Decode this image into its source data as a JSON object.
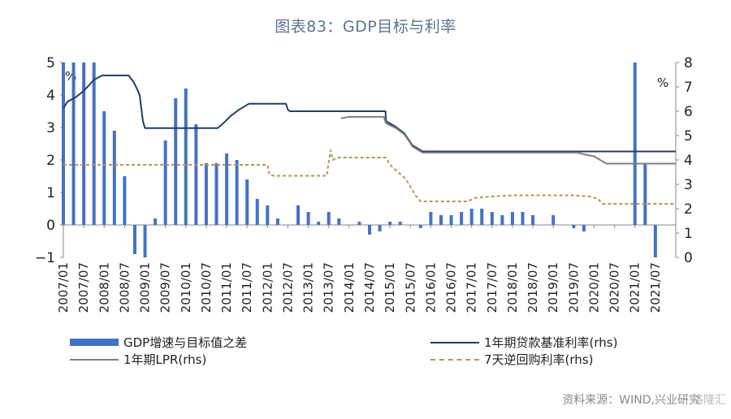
{
  "chart_data": {
    "type": "bar+line",
    "title": "图表83：GDP目标与利率",
    "left_unit": "%",
    "right_unit": "%",
    "ylim_left": [
      -1,
      5
    ],
    "ylim_right": [
      0,
      8
    ],
    "yticks_left": [
      "5",
      "4",
      "3",
      "2",
      "1",
      "0",
      "−1"
    ],
    "yticks_right": [
      "8",
      "7",
      "6",
      "5",
      "4",
      "3",
      "2",
      "1",
      "0"
    ],
    "x_range": [
      2007.0,
      2022.0
    ],
    "xticks": [
      "2007/01",
      "2007/07",
      "2008/01",
      "2008/07",
      "2009/01",
      "2009/07",
      "2010/01",
      "2010/07",
      "2011/01",
      "2011/07",
      "2012/01",
      "2012/07",
      "2013/01",
      "2013/07",
      "2014/01",
      "2014/07",
      "2015/01",
      "2015/07",
      "2016/01",
      "2016/07",
      "2017/01",
      "2017/07",
      "2018/01",
      "2018/07",
      "2019/01",
      "2019/07",
      "2020/01",
      "2020/07",
      "2021/01",
      "2021/07"
    ],
    "series": [
      {
        "name": "GDP增速与目标值之差",
        "type": "bar",
        "axis": "left",
        "color": "#4472c4",
        "points": [
          [
            2007.0,
            5.0
          ],
          [
            2007.25,
            5.0
          ],
          [
            2007.5,
            5.0
          ],
          [
            2007.75,
            5.0
          ],
          [
            2008.0,
            3.5
          ],
          [
            2008.25,
            2.9
          ],
          [
            2008.5,
            1.5
          ],
          [
            2008.75,
            -0.9
          ],
          [
            2009.0,
            -1.1
          ],
          [
            2009.25,
            0.2
          ],
          [
            2009.5,
            2.6
          ],
          [
            2009.75,
            3.9
          ],
          [
            2010.0,
            4.2
          ],
          [
            2010.25,
            3.1
          ],
          [
            2010.5,
            1.9
          ],
          [
            2010.75,
            1.9
          ],
          [
            2011.0,
            2.2
          ],
          [
            2011.25,
            2.0
          ],
          [
            2011.5,
            1.4
          ],
          [
            2011.75,
            0.8
          ],
          [
            2012.0,
            0.6
          ],
          [
            2012.25,
            0.2
          ],
          [
            2012.75,
            0.6
          ],
          [
            2013.0,
            0.4
          ],
          [
            2013.25,
            0.1
          ],
          [
            2013.5,
            0.4
          ],
          [
            2013.75,
            0.2
          ],
          [
            2014.25,
            0.1
          ],
          [
            2014.5,
            -0.3
          ],
          [
            2014.75,
            -0.2
          ],
          [
            2015.0,
            0.1
          ],
          [
            2015.25,
            0.1
          ],
          [
            2015.75,
            -0.1
          ],
          [
            2016.0,
            0.4
          ],
          [
            2016.25,
            0.3
          ],
          [
            2016.5,
            0.3
          ],
          [
            2016.75,
            0.4
          ],
          [
            2017.0,
            0.5
          ],
          [
            2017.25,
            0.5
          ],
          [
            2017.5,
            0.4
          ],
          [
            2017.75,
            0.3
          ],
          [
            2018.0,
            0.4
          ],
          [
            2018.25,
            0.4
          ],
          [
            2018.5,
            0.3
          ],
          [
            2019.0,
            0.3
          ],
          [
            2019.5,
            -0.1
          ],
          [
            2019.75,
            -0.2
          ],
          [
            2021.0,
            5.0
          ],
          [
            2021.25,
            1.9
          ],
          [
            2021.5,
            -1.0
          ]
        ]
      },
      {
        "name": "1年期贷款基准利率(rhs)",
        "type": "line",
        "axis": "right",
        "color": "#1f3f66",
        "points": [
          [
            2007.0,
            6.12
          ],
          [
            2007.1,
            6.39
          ],
          [
            2007.3,
            6.57
          ],
          [
            2007.5,
            6.84
          ],
          [
            2007.6,
            7.02
          ],
          [
            2007.75,
            7.29
          ],
          [
            2007.95,
            7.47
          ],
          [
            2008.6,
            7.47
          ],
          [
            2008.72,
            7.2
          ],
          [
            2008.8,
            6.93
          ],
          [
            2008.87,
            6.66
          ],
          [
            2008.95,
            5.58
          ],
          [
            2009.0,
            5.31
          ],
          [
            2010.78,
            5.31
          ],
          [
            2010.95,
            5.56
          ],
          [
            2011.1,
            5.81
          ],
          [
            2011.3,
            6.06
          ],
          [
            2011.55,
            6.31
          ],
          [
            2012.45,
            6.31
          ],
          [
            2012.5,
            6.06
          ],
          [
            2012.55,
            6.0
          ],
          [
            2014.89,
            6.0
          ],
          [
            2014.9,
            5.6
          ],
          [
            2015.15,
            5.35
          ],
          [
            2015.35,
            5.1
          ],
          [
            2015.45,
            4.85
          ],
          [
            2015.55,
            4.6
          ],
          [
            2015.8,
            4.35
          ],
          [
            2022.0,
            4.35
          ]
        ]
      },
      {
        "name": "1年期LPR(rhs)",
        "type": "line",
        "axis": "right",
        "color": "#808080",
        "points": [
          [
            2013.8,
            5.71
          ],
          [
            2014.0,
            5.77
          ],
          [
            2014.85,
            5.77
          ],
          [
            2014.9,
            5.51
          ],
          [
            2015.15,
            5.3
          ],
          [
            2015.35,
            5.05
          ],
          [
            2015.45,
            4.81
          ],
          [
            2015.55,
            4.55
          ],
          [
            2015.8,
            4.3
          ],
          [
            2019.6,
            4.3
          ],
          [
            2019.7,
            4.25
          ],
          [
            2019.85,
            4.2
          ],
          [
            2020.0,
            4.15
          ],
          [
            2020.1,
            4.05
          ],
          [
            2020.3,
            3.85
          ],
          [
            2022.0,
            3.85
          ]
        ]
      },
      {
        "name": "7天逆回购利率(rhs)",
        "type": "line",
        "axis": "right",
        "color": "#b8935a",
        "dashed": true,
        "points": [
          [
            2007.0,
            3.8
          ],
          [
            2012.0,
            3.8
          ],
          [
            2012.05,
            3.4
          ],
          [
            2012.15,
            3.35
          ],
          [
            2013.45,
            3.35
          ],
          [
            2013.5,
            3.9
          ],
          [
            2013.55,
            4.4
          ],
          [
            2013.6,
            4.0
          ],
          [
            2013.7,
            4.1
          ],
          [
            2014.9,
            4.1
          ],
          [
            2015.0,
            3.8
          ],
          [
            2015.2,
            3.5
          ],
          [
            2015.4,
            3.2
          ],
          [
            2015.6,
            2.6
          ],
          [
            2015.75,
            2.3
          ],
          [
            2016.9,
            2.3
          ],
          [
            2017.1,
            2.45
          ],
          [
            2017.5,
            2.5
          ],
          [
            2018.0,
            2.55
          ],
          [
            2018.3,
            2.55
          ],
          [
            2019.5,
            2.55
          ],
          [
            2019.9,
            2.5
          ],
          [
            2020.1,
            2.4
          ],
          [
            2020.2,
            2.2
          ],
          [
            2022.0,
            2.2
          ]
        ]
      }
    ],
    "legend": [
      {
        "label": "GDP增速与目标值之差",
        "kind": "bar",
        "color": "#4472c4"
      },
      {
        "label": "1年期贷款基准利率(rhs)",
        "kind": "line",
        "color": "#1f3f66"
      },
      {
        "label": "1年期LPR(rhs)",
        "kind": "line",
        "color": "#808080"
      },
      {
        "label": "7天逆回购利率(rhs)",
        "kind": "dash",
        "color": "#b8935a"
      }
    ],
    "source": "资料来源：WIND,兴业研究",
    "watermark": "格隆汇"
  }
}
